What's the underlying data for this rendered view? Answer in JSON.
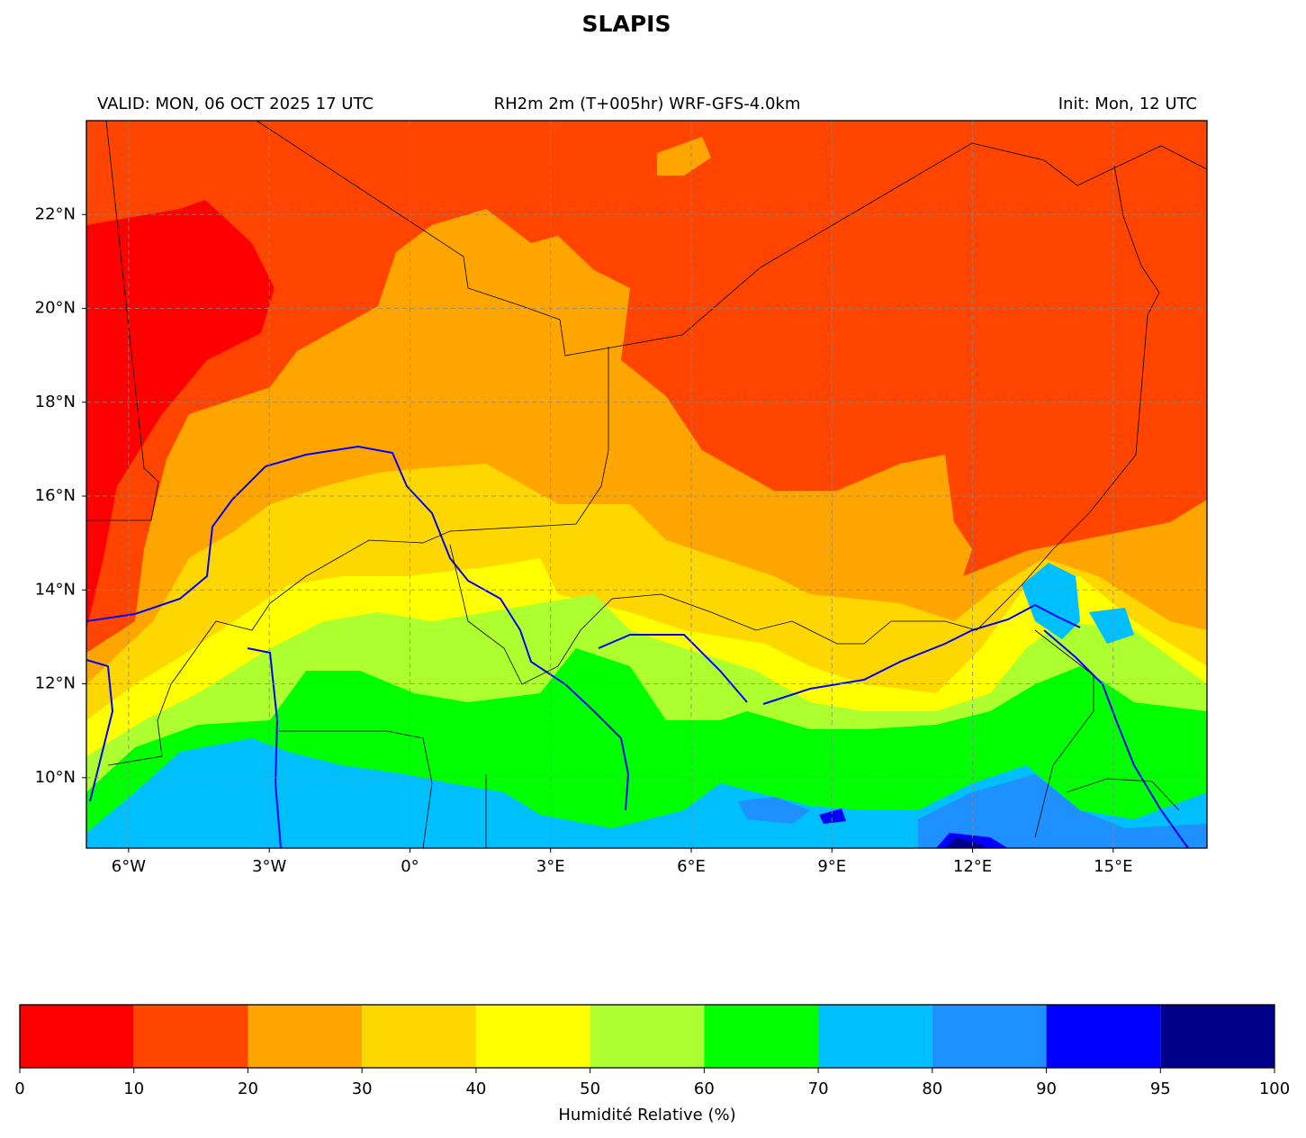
{
  "header": {
    "title": "SLAPIS"
  },
  "map": {
    "valid": "VALID: MON, 06 OCT 2025 17 UTC",
    "product": "RH2m 2m (T+005hr) WRF-GFS-4.0km",
    "init": "Init: Mon, 12 UTC",
    "xlim": [
      -6.9,
      17
    ],
    "ylim": [
      8.5,
      24
    ],
    "xticks": [
      {
        "value": -6,
        "label": "6°W"
      },
      {
        "value": -3,
        "label": "3°W"
      },
      {
        "value": 0,
        "label": "0°"
      },
      {
        "value": 3,
        "label": "3°E"
      },
      {
        "value": 6,
        "label": "6°E"
      },
      {
        "value": 9,
        "label": "9°E"
      },
      {
        "value": 12,
        "label": "12°E"
      },
      {
        "value": 15,
        "label": "15°E"
      }
    ],
    "yticks": [
      {
        "value": 10,
        "label": "10°N"
      },
      {
        "value": 12,
        "label": "12°N"
      },
      {
        "value": 14,
        "label": "14°N"
      },
      {
        "value": 16,
        "label": "16°N"
      },
      {
        "value": 18,
        "label": "18°N"
      },
      {
        "value": 20,
        "label": "20°N"
      },
      {
        "value": 22,
        "label": "22°N"
      }
    ],
    "grid": true
  },
  "colorbar": {
    "label": "Humidité Relative (%)",
    "bounds": [
      0,
      10,
      20,
      30,
      40,
      50,
      60,
      70,
      80,
      90,
      95,
      100
    ],
    "colors": [
      "#ff0000",
      "#ff4500",
      "#ffa500",
      "#ffd700",
      "#ffff00",
      "#adff2f",
      "#00ff00",
      "#00bfff",
      "#1e90ff",
      "#0000ff",
      "#00008b"
    ]
  }
}
